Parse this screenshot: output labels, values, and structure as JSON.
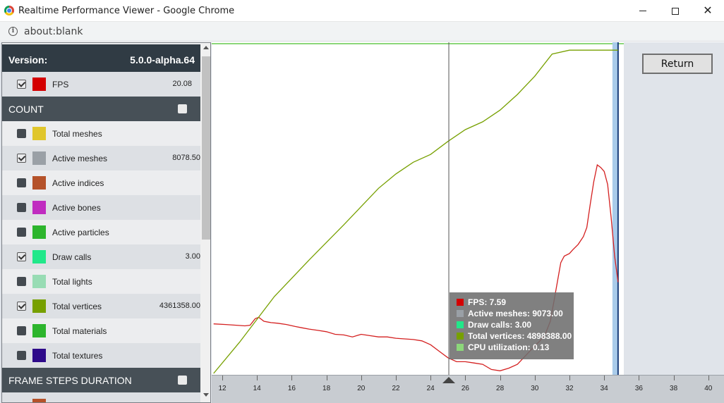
{
  "window": {
    "title": "Realtime Performance Viewer - Google Chrome",
    "url": "about:blank"
  },
  "sidebar": {
    "version_label": "Version:",
    "version_value": "5.0.0-alpha.64",
    "fps": {
      "label": "FPS",
      "value": "20.08",
      "color": "#d40000",
      "checked": true
    },
    "count_header": "COUNT",
    "count_items": [
      {
        "label": "Total meshes",
        "value": "",
        "color": "#e0c62c",
        "checked": false
      },
      {
        "label": "Active meshes",
        "value": "8078.50",
        "color": "#9aa0a6",
        "checked": true
      },
      {
        "label": "Active indices",
        "value": "",
        "color": "#b5522a",
        "checked": false
      },
      {
        "label": "Active bones",
        "value": "",
        "color": "#c02cc0",
        "checked": false
      },
      {
        "label": "Active particles",
        "value": "",
        "color": "#2db52d",
        "checked": false
      },
      {
        "label": "Draw calls",
        "value": "3.00",
        "color": "#21e88a",
        "checked": true
      },
      {
        "label": "Total lights",
        "value": "",
        "color": "#98dcb4",
        "checked": false
      },
      {
        "label": "Total vertices",
        "value": "4361358.00",
        "color": "#77a000",
        "checked": true
      },
      {
        "label": "Total materials",
        "value": "",
        "color": "#2db52d",
        "checked": false
      },
      {
        "label": "Total textures",
        "value": "",
        "color": "#2e0a8a",
        "checked": false
      }
    ],
    "frame_header": "FRAME STEPS DURATION"
  },
  "return_button": "Return",
  "tooltip": [
    {
      "text": "FPS: 7.59",
      "color": "#d40000"
    },
    {
      "text": "Active meshes: 9073.00",
      "color": "#9aa0a6"
    },
    {
      "text": "Draw calls: 3.00",
      "color": "#21e88a"
    },
    {
      "text": "Total vertices: 4898388.00",
      "color": "#77a000"
    },
    {
      "text": "CPU utilization: 0.13",
      "color": "#8cd77a"
    }
  ],
  "timeline": {
    "ticks": [
      "12",
      "14",
      "16",
      "18",
      "20",
      "22",
      "24",
      "26",
      "28",
      "30",
      "32",
      "34",
      "36",
      "38",
      "40"
    ]
  },
  "chart_data": {
    "type": "line",
    "xlim": [
      11.5,
      41
    ],
    "x_ticks": [
      12,
      14,
      16,
      18,
      20,
      22,
      24,
      26,
      28,
      30,
      32,
      34,
      36,
      38,
      40
    ],
    "cursor_x": 25.05,
    "series": [
      {
        "color": "#d42020",
        "x": [
          11.5,
          12.2,
          12.8,
          13.3,
          13.6,
          13.9,
          14.1,
          14.4,
          14.8,
          15.2,
          15.7,
          16.2,
          16.6,
          17,
          17.5,
          18,
          18.5,
          19,
          19.5,
          20,
          20.5,
          21,
          21.5,
          22,
          22.5,
          23,
          23.5,
          24,
          24.5,
          25,
          25.5,
          26,
          26.5,
          27,
          27.5,
          28,
          28.5,
          29,
          29.5,
          30,
          30.3,
          30.6,
          30.9,
          31.1,
          31.3,
          31.5,
          31.7,
          32,
          32.2,
          32.5,
          32.8,
          33,
          33.2,
          33.4,
          33.6,
          33.8,
          34,
          34.2,
          34.4,
          34.6,
          34.8
        ],
        "y": [
          0.38,
          0.375,
          0.37,
          0.365,
          0.37,
          0.42,
          0.43,
          0.4,
          0.39,
          0.385,
          0.375,
          0.36,
          0.35,
          0.34,
          0.33,
          0.32,
          0.3,
          0.295,
          0.28,
          0.3,
          0.29,
          0.28,
          0.28,
          0.27,
          0.265,
          0.26,
          0.25,
          0.22,
          0.17,
          0.12,
          0.09,
          0.09,
          0.08,
          0.07,
          0.03,
          0.02,
          0.04,
          0.07,
          0.14,
          0.21,
          0.25,
          0.3,
          0.4,
          0.55,
          0.7,
          0.85,
          0.9,
          0.92,
          0.95,
          0.99,
          1.05,
          1.12,
          1.3,
          1.47,
          1.6,
          1.58,
          1.55,
          1.45,
          1.2,
          0.9,
          0.7
        ]
      },
      {
        "color": "#77a000",
        "x": [
          11.5,
          13,
          15,
          17,
          19,
          21,
          22,
          23,
          24,
          25,
          26,
          27,
          28,
          29,
          30,
          31,
          32,
          33,
          34,
          34.8
        ],
        "y": [
          0,
          0.24,
          0.59,
          0.87,
          1.14,
          1.42,
          1.53,
          1.62,
          1.68,
          1.78,
          1.87,
          1.93,
          2.02,
          2.14,
          2.28,
          2.45,
          2.48,
          2.48,
          2.48,
          2.48
        ]
      }
    ]
  }
}
